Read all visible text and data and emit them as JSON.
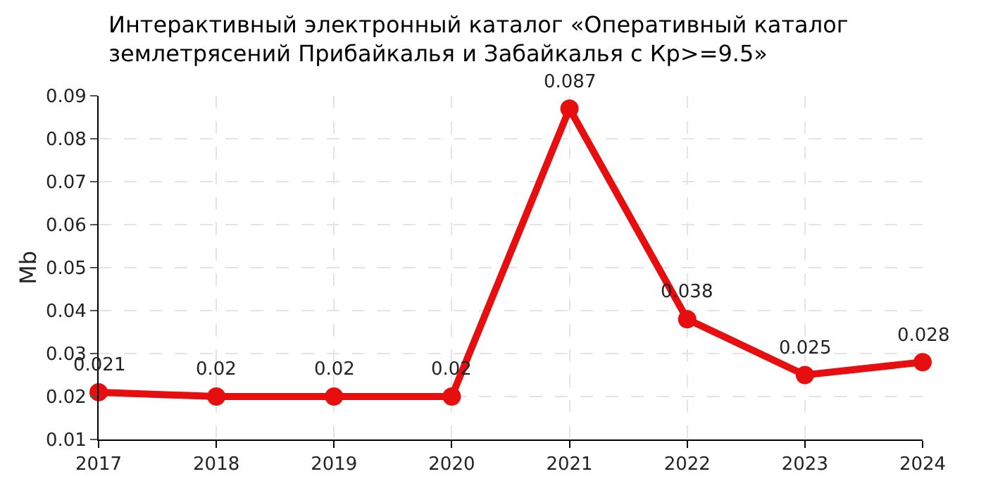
{
  "chart_data": {
    "type": "line",
    "title": "Интерактивный электронный каталог «Оперативный каталог землетрясений Прибайкалья и Забайкалья с Кр>=9.5»",
    "ylabel": "Mb",
    "categories": [
      "2017",
      "2018",
      "2019",
      "2020",
      "2021",
      "2022",
      "2023",
      "2024"
    ],
    "series": [
      {
        "color": "#e60e0e",
        "values": [
          0.021,
          0.02,
          0.02,
          0.02,
          0.087,
          0.038,
          0.025,
          0.028
        ]
      }
    ],
    "ylim": [
      0.01,
      0.09
    ],
    "yticks": [
      0.01,
      0.02,
      0.03,
      0.04,
      0.05,
      0.06,
      0.07,
      0.08,
      0.09
    ],
    "grid": true,
    "legend": false,
    "marker": "circle",
    "line_style": "solid",
    "data_labels": true
  }
}
